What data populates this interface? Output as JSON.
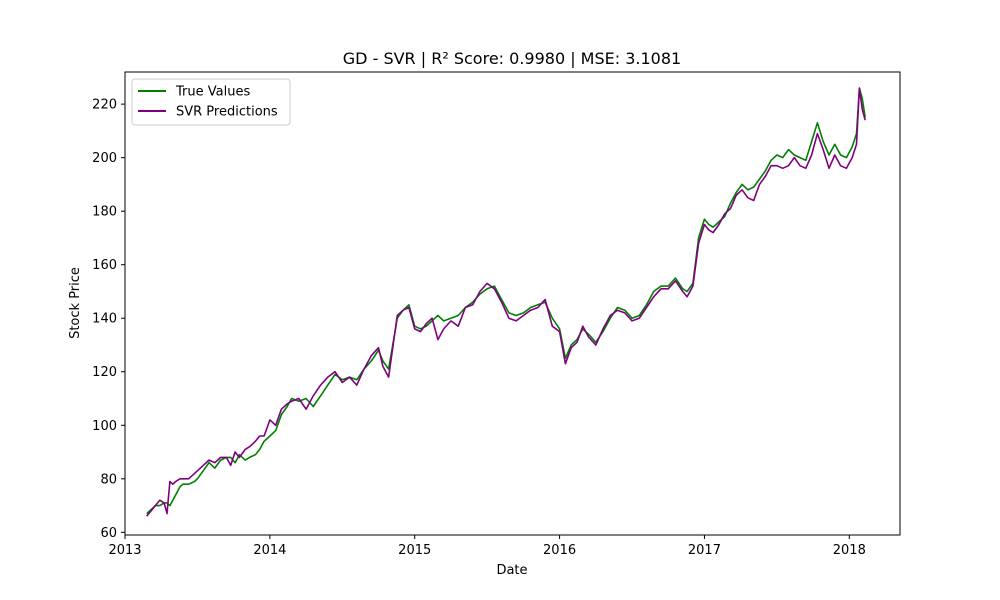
{
  "chart_data": {
    "type": "line",
    "title": "GD - SVR | R² Score: 0.9980 | MSE: 3.1081",
    "xlabel": "Date",
    "ylabel": "Stock Price",
    "xlim": [
      2013.0,
      2018.35
    ],
    "ylim": [
      59.0,
      232.0
    ],
    "x_ticks": [
      2013,
      2014,
      2015,
      2016,
      2017,
      2018
    ],
    "y_ticks": [
      60,
      80,
      100,
      120,
      140,
      160,
      180,
      200,
      220
    ],
    "grid": false,
    "legend_position": "top-left",
    "series": [
      {
        "name": "True Values",
        "color": "#008000",
        "x": [
          2013.15,
          2013.21,
          2013.24,
          2013.27,
          2013.29,
          2013.31,
          2013.33,
          2013.35,
          2013.38,
          2013.4,
          2013.44,
          2013.48,
          2013.5,
          2013.54,
          2013.58,
          2013.62,
          2013.66,
          2013.7,
          2013.73,
          2013.76,
          2013.79,
          2013.83,
          2013.86,
          2013.9,
          2013.93,
          2013.96,
          2014.0,
          2014.04,
          2014.08,
          2014.12,
          2014.15,
          2014.2,
          2014.25,
          2014.3,
          2014.35,
          2014.4,
          2014.45,
          2014.5,
          2014.55,
          2014.6,
          2014.65,
          2014.7,
          2014.75,
          2014.78,
          2014.82,
          2014.88,
          2014.92,
          2014.96,
          2015.0,
          2015.04,
          2015.08,
          2015.12,
          2015.16,
          2015.2,
          2015.25,
          2015.3,
          2015.35,
          2015.4,
          2015.45,
          2015.5,
          2015.55,
          2015.6,
          2015.65,
          2015.7,
          2015.75,
          2015.8,
          2015.85,
          2015.9,
          2015.95,
          2016.0,
          2016.04,
          2016.08,
          2016.12,
          2016.16,
          2016.2,
          2016.25,
          2016.3,
          2016.35,
          2016.4,
          2016.45,
          2016.5,
          2016.55,
          2016.6,
          2016.65,
          2016.7,
          2016.75,
          2016.8,
          2016.85,
          2016.88,
          2016.92,
          2016.96,
          2017.0,
          2017.03,
          2017.06,
          2017.1,
          2017.14,
          2017.18,
          2017.22,
          2017.26,
          2017.3,
          2017.34,
          2017.38,
          2017.42,
          2017.46,
          2017.5,
          2017.54,
          2017.58,
          2017.62,
          2017.66,
          2017.7,
          2017.74,
          2017.78,
          2017.82,
          2017.86,
          2017.9,
          2017.94,
          2017.98,
          2018.02,
          2018.05,
          2018.07,
          2018.09,
          2018.11
        ],
        "values": [
          67,
          70,
          70,
          71,
          71,
          70,
          72,
          74,
          77,
          78,
          78,
          79,
          80,
          83,
          86,
          84,
          87,
          88,
          88,
          86,
          89,
          87,
          88,
          89,
          91,
          94,
          96,
          98,
          104,
          107,
          110,
          109,
          110,
          107,
          111,
          115,
          119,
          117,
          118,
          117,
          121,
          124,
          128,
          124,
          121,
          140,
          143,
          145,
          137,
          136,
          137,
          139,
          141,
          139,
          140,
          141,
          144,
          146,
          149,
          151,
          152,
          147,
          142,
          141,
          142,
          144,
          145,
          146,
          140,
          136,
          125,
          130,
          132,
          136,
          134,
          131,
          135,
          140,
          144,
          143,
          140,
          141,
          145,
          150,
          152,
          152,
          155,
          151,
          150,
          153,
          170,
          177,
          175,
          174,
          176,
          178,
          183,
          187,
          190,
          188,
          189,
          192,
          195,
          199,
          201,
          200,
          203,
          201,
          200,
          199,
          206,
          213,
          206,
          201,
          205,
          201,
          200,
          204,
          209,
          226,
          222,
          215
        ]
      },
      {
        "name": "SVR Predictions",
        "color": "#800080",
        "x": [
          2013.15,
          2013.21,
          2013.24,
          2013.27,
          2013.29,
          2013.31,
          2013.33,
          2013.35,
          2013.38,
          2013.4,
          2013.44,
          2013.48,
          2013.5,
          2013.54,
          2013.58,
          2013.62,
          2013.66,
          2013.7,
          2013.73,
          2013.76,
          2013.79,
          2013.83,
          2013.86,
          2013.9,
          2013.93,
          2013.96,
          2014.0,
          2014.04,
          2014.08,
          2014.12,
          2014.15,
          2014.2,
          2014.25,
          2014.3,
          2014.35,
          2014.4,
          2014.45,
          2014.5,
          2014.55,
          2014.6,
          2014.65,
          2014.7,
          2014.75,
          2014.78,
          2014.82,
          2014.88,
          2014.92,
          2014.96,
          2015.0,
          2015.04,
          2015.08,
          2015.12,
          2015.16,
          2015.2,
          2015.25,
          2015.3,
          2015.35,
          2015.4,
          2015.45,
          2015.5,
          2015.55,
          2015.6,
          2015.65,
          2015.7,
          2015.75,
          2015.8,
          2015.85,
          2015.9,
          2015.95,
          2016.0,
          2016.04,
          2016.08,
          2016.12,
          2016.16,
          2016.2,
          2016.25,
          2016.3,
          2016.35,
          2016.4,
          2016.45,
          2016.5,
          2016.55,
          2016.6,
          2016.65,
          2016.7,
          2016.75,
          2016.8,
          2016.85,
          2016.88,
          2016.92,
          2016.96,
          2017.0,
          2017.03,
          2017.06,
          2017.1,
          2017.14,
          2017.18,
          2017.22,
          2017.26,
          2017.3,
          2017.34,
          2017.38,
          2017.42,
          2017.46,
          2017.5,
          2017.54,
          2017.58,
          2017.62,
          2017.66,
          2017.7,
          2017.74,
          2017.78,
          2017.82,
          2017.86,
          2017.9,
          2017.94,
          2017.98,
          2018.02,
          2018.05,
          2018.07,
          2018.09,
          2018.11
        ],
        "values": [
          66,
          70,
          72,
          71,
          67,
          79,
          78,
          79,
          80,
          80,
          80,
          82,
          83,
          85,
          87,
          86,
          88,
          88,
          85,
          90,
          88,
          91,
          92,
          94,
          96,
          96,
          102,
          100,
          106,
          108,
          109,
          110,
          106,
          111,
          115,
          118,
          120,
          116,
          118,
          115,
          121,
          126,
          129,
          122,
          118,
          141,
          143,
          144,
          136,
          135,
          138,
          140,
          132,
          136,
          139,
          137,
          144,
          145,
          150,
          153,
          151,
          146,
          140,
          139,
          141,
          143,
          144,
          147,
          137,
          135,
          123,
          129,
          131,
          137,
          133,
          130,
          136,
          141,
          143,
          142,
          139,
          140,
          144,
          148,
          151,
          151,
          154,
          150,
          148,
          152,
          168,
          175,
          173,
          172,
          175,
          179,
          181,
          186,
          188,
          185,
          184,
          190,
          193,
          197,
          197,
          196,
          197,
          200,
          197,
          196,
          201,
          209,
          203,
          196,
          201,
          197,
          196,
          200,
          205,
          226,
          218,
          214
        ]
      }
    ]
  }
}
